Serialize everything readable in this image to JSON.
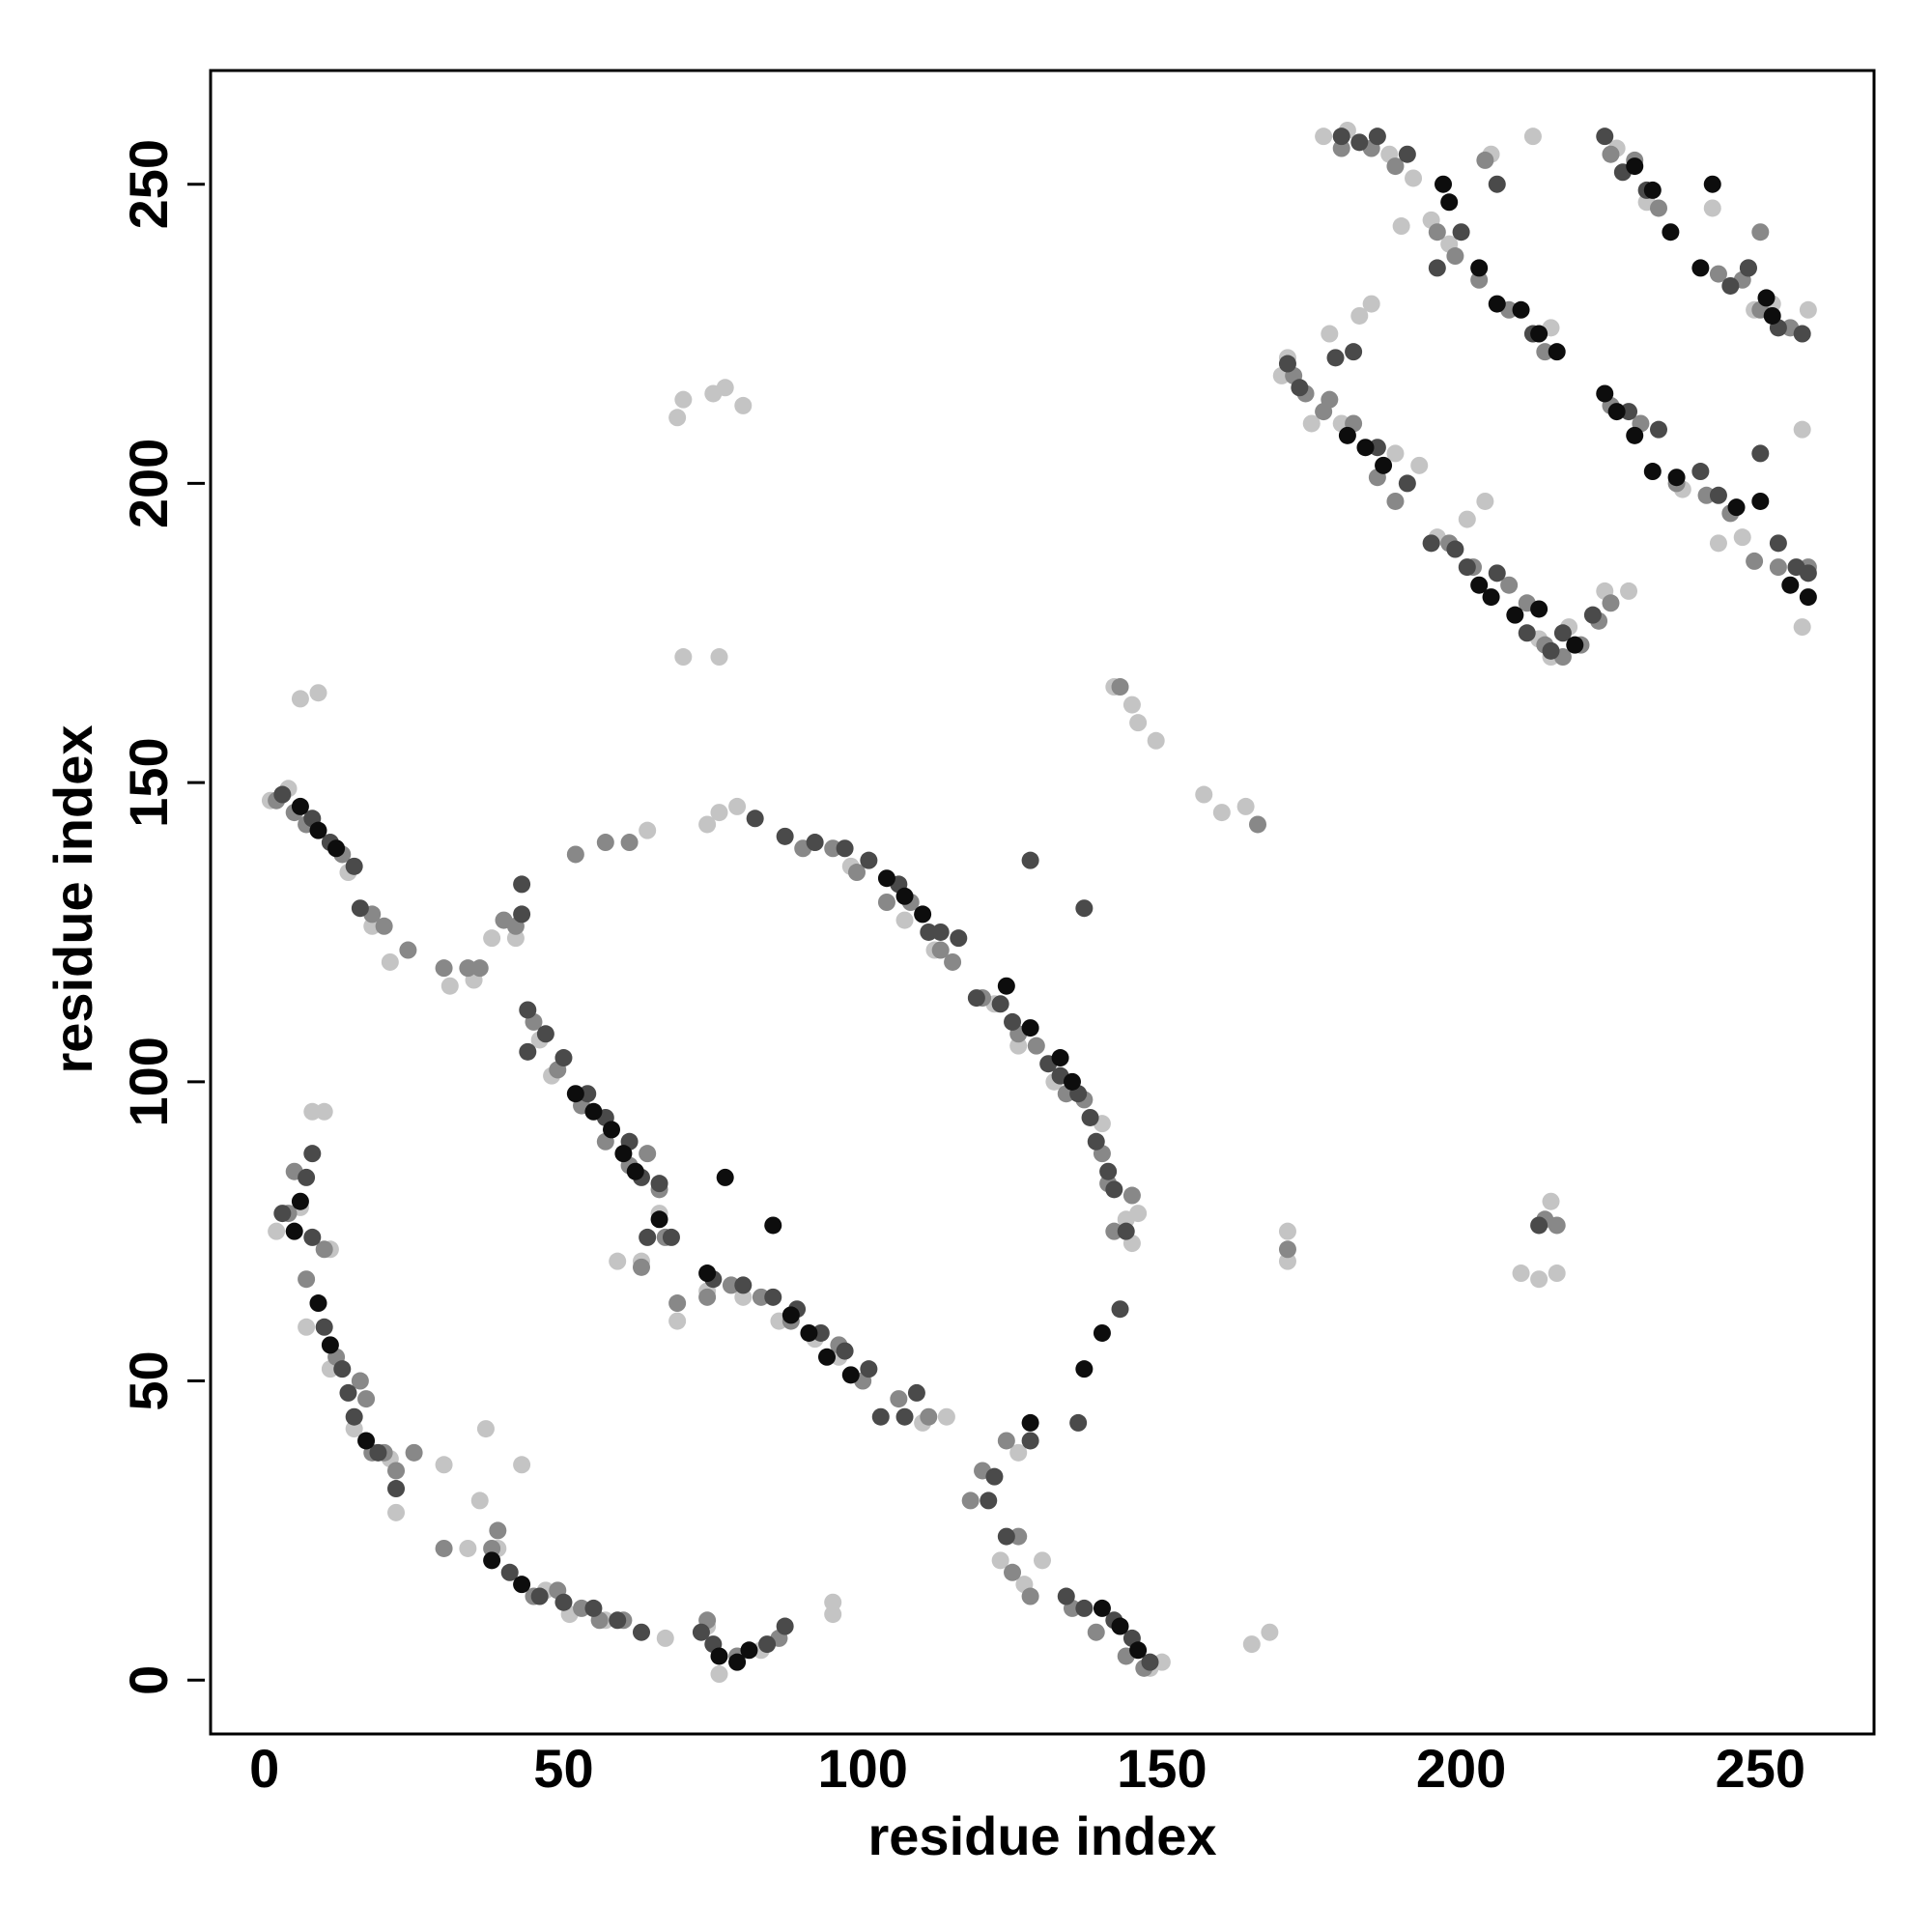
{
  "chart_data": {
    "type": "scatter",
    "xlabel": "residue index",
    "ylabel": "residue index",
    "xlim": [
      -9,
      269
    ],
    "ylim": [
      -9,
      269
    ],
    "xticks": [
      0,
      50,
      100,
      150,
      200,
      250
    ],
    "yticks": [
      0,
      50,
      100,
      150,
      200,
      250
    ],
    "grid": false,
    "series": [
      {
        "color": "#c4c4c4",
        "x": [
          1,
          4,
          14,
          18,
          21,
          31,
          35,
          38,
          42,
          2,
          6,
          11,
          7,
          11,
          15,
          21,
          22,
          30,
          34,
          36,
          37,
          43,
          39,
          47,
          51,
          57,
          67,
          74,
          76,
          83,
          95,
          95,
          46,
          48,
          59,
          63,
          66,
          69,
          74,
          80,
          86,
          92,
          96,
          110,
          114,
          70,
          69,
          75,
          77,
          80,
          9,
          6,
          10,
          8,
          70,
          76,
          74,
          76,
          79,
          64,
          92,
          98,
          107,
          112,
          122,
          126,
          132,
          140,
          144,
          146,
          145,
          126,
          123,
          130,
          127,
          148,
          150,
          142,
          145,
          146,
          149,
          157,
          160,
          164,
          171,
          171,
          165,
          168,
          215,
          213,
          216,
          210,
          177,
          181,
          188,
          190,
          192,
          195,
          198,
          205,
          212,
          215,
          226,
          231,
          242,
          249,
          252,
          258,
          178,
          171,
          175,
          180,
          189,
          193,
          196,
          201,
          204,
          213,
          215,
          218,
          224,
          228,
          243,
          247,
          257,
          257,
          237,
          183,
          185,
          170
        ],
        "values": [
          147,
          149,
          135,
          126,
          120,
          116,
          117,
          124,
          124,
          75,
          79,
          72,
          59,
          52,
          42,
          37,
          28,
          36,
          22,
          30,
          42,
          36,
          22,
          15,
          11,
          10,
          7,
          9,
          1,
          5,
          11,
          13,
          107,
          101,
          70,
          70,
          78,
          60,
          65,
          64,
          60,
          57,
          54,
          43,
          44,
          214,
          211,
          215,
          216,
          213,
          165,
          164,
          95,
          95,
          171,
          171,
          143,
          145,
          146,
          142,
          140,
          136,
          127,
          122,
          113,
          106,
          100,
          93,
          77,
          78,
          73,
          38,
          20,
          20,
          16,
          2,
          3,
          166,
          163,
          160,
          157,
          148,
          145,
          146,
          75,
          70,
          6,
          8,
          80,
          67,
          68,
          68,
          258,
          259,
          255,
          243,
          251,
          244,
          240,
          255,
          258,
          226,
          256,
          247,
          246,
          229,
          230,
          229,
          225,
          221,
          210,
          210,
          205,
          203,
          191,
          194,
          197,
          174,
          171,
          176,
          182,
          182,
          190,
          191,
          176,
          209,
          199,
          228,
          230,
          218
        ]
      },
      {
        "color": "#888888",
        "x": [
          2,
          5,
          7,
          13,
          18,
          20,
          24,
          30,
          34,
          36,
          40,
          42,
          7,
          5,
          4,
          10,
          12,
          16,
          17,
          18,
          20,
          22,
          25,
          30,
          38,
          39,
          45,
          49,
          53,
          56,
          60,
          74,
          79,
          86,
          45,
          49,
          53,
          57,
          61,
          64,
          66,
          67,
          63,
          69,
          74,
          78,
          83,
          88,
          96,
          100,
          106,
          111,
          90,
          95,
          99,
          104,
          108,
          113,
          115,
          120,
          126,
          129,
          134,
          137,
          140,
          141,
          145,
          142,
          124,
          126,
          125,
          118,
          120,
          128,
          135,
          139,
          144,
          147,
          52,
          57,
          61,
          172,
          174,
          177,
          178,
          182,
          186,
          189,
          198,
          202,
          208,
          211,
          214,
          217,
          220,
          223,
          225,
          180,
          185,
          189,
          196,
          199,
          203,
          208,
          214,
          225,
          229,
          233,
          243,
          247,
          250,
          255,
          225,
          230,
          236,
          241,
          245,
          249,
          253,
          250,
          258,
          204,
          214,
          216,
          143,
          166,
          171
        ],
        "values": [
          147,
          145,
          143,
          138,
          128,
          126,
          122,
          119,
          119,
          119,
          127,
          126,
          67,
          85,
          78,
          72,
          54,
          50,
          47,
          38,
          38,
          35,
          38,
          22,
          22,
          25,
          14,
          15,
          12,
          10,
          10,
          10,
          4,
          7,
          110,
          102,
          96,
          90,
          86,
          88,
          82,
          74,
          69,
          63,
          64,
          66,
          64,
          60,
          56,
          50,
          47,
          44,
          139,
          139,
          135,
          130,
          130,
          122,
          120,
          114,
          108,
          106,
          98,
          97,
          88,
          83,
          81,
          75,
          40,
          24,
          18,
          30,
          35,
          14,
          12,
          8,
          4,
          2,
          138,
          140,
          140,
          218,
          215,
          212,
          214,
          210,
          201,
          197,
          190,
          186,
          183,
          180,
          173,
          171,
          173,
          177,
          180,
          256,
          256,
          253,
          242,
          238,
          234,
          229,
          222,
          255,
          254,
          246,
          235,
          234,
          229,
          226,
          213,
          210,
          200,
          198,
          195,
          187,
          186,
          242,
          186,
          254,
          77,
          76,
          166,
          143,
          72
        ]
      },
      {
        "color": "#4a4a4a",
        "x": [
          3,
          8,
          11,
          15,
          16,
          43,
          43,
          3,
          7,
          8,
          8,
          10,
          13,
          14,
          15,
          19,
          22,
          41,
          46,
          50,
          55,
          59,
          63,
          73,
          75,
          84,
          87,
          44,
          44,
          47,
          50,
          54,
          57,
          61,
          63,
          66,
          68,
          64,
          75,
          80,
          85,
          89,
          93,
          97,
          101,
          103,
          107,
          109,
          82,
          87,
          92,
          97,
          101,
          106,
          111,
          113,
          116,
          119,
          123,
          125,
          131,
          133,
          136,
          138,
          139,
          141,
          142,
          144,
          128,
          137,
          136,
          121,
          124,
          122,
          128,
          134,
          137,
          142,
          145,
          148,
          180,
          183,
          186,
          191,
          200,
          196,
          206,
          212,
          224,
          227,
          231,
          248,
          245,
          253,
          257,
          171,
          173,
          179,
          182,
          186,
          191,
          195,
          199,
          201,
          206,
          211,
          215,
          217,
          222,
          228,
          233,
          240,
          243,
          248,
          250,
          253,
          256,
          258,
          213,
          143
        ],
        "values": [
          148,
          144,
          140,
          136,
          129,
          133,
          128,
          78,
          84,
          88,
          74,
          59,
          52,
          48,
          44,
          38,
          32,
          18,
          14,
          13,
          12,
          10,
          8,
          8,
          6,
          6,
          9,
          105,
          112,
          108,
          104,
          98,
          94,
          90,
          84,
          83,
          74,
          74,
          67,
          66,
          64,
          62,
          58,
          55,
          52,
          44,
          44,
          48,
          144,
          141,
          140,
          139,
          137,
          133,
          125,
          125,
          124,
          114,
          113,
          110,
          103,
          101,
          98,
          94,
          90,
          85,
          82,
          75,
          137,
          129,
          43,
          30,
          24,
          34,
          40,
          14,
          12,
          10,
          7,
          3,
          258,
          257,
          258,
          255,
          242,
          236,
          250,
          225,
          258,
          252,
          249,
          236,
          233,
          226,
          225,
          220,
          216,
          221,
          222,
          206,
          200,
          190,
          189,
          186,
          185,
          175,
          172,
          175,
          178,
          212,
          209,
          202,
          198,
          236,
          205,
          190,
          186,
          185,
          76,
          62
        ]
      },
      {
        "color": "#0d0d0d",
        "x": [
          6,
          9,
          12,
          6,
          5,
          9,
          11,
          17,
          38,
          43,
          52,
          55,
          58,
          60,
          62,
          66,
          74,
          76,
          79,
          81,
          77,
          85,
          88,
          91,
          94,
          98,
          104,
          107,
          110,
          124,
          128,
          133,
          135,
          137,
          140,
          143,
          146,
          197,
          198,
          203,
          206,
          210,
          213,
          216,
          229,
          232,
          235,
          242,
          240,
          251,
          252,
          181,
          184,
          187,
          203,
          205,
          209,
          213,
          219,
          224,
          226,
          229,
          232,
          236,
          246,
          250,
          255,
          258,
          128,
          140
        ],
        "values": [
          146,
          142,
          139,
          80,
          75,
          63,
          56,
          40,
          20,
          16,
          98,
          95,
          92,
          88,
          85,
          77,
          68,
          4,
          3,
          5,
          84,
          76,
          61,
          58,
          54,
          51,
          134,
          131,
          128,
          116,
          109,
          104,
          100,
          52,
          12,
          9,
          5,
          250,
          247,
          236,
          230,
          229,
          225,
          222,
          253,
          249,
          242,
          250,
          236,
          231,
          228,
          208,
          206,
          203,
          183,
          181,
          178,
          179,
          173,
          215,
          212,
          208,
          202,
          201,
          196,
          197,
          183,
          181,
          43,
          58
        ]
      }
    ]
  }
}
